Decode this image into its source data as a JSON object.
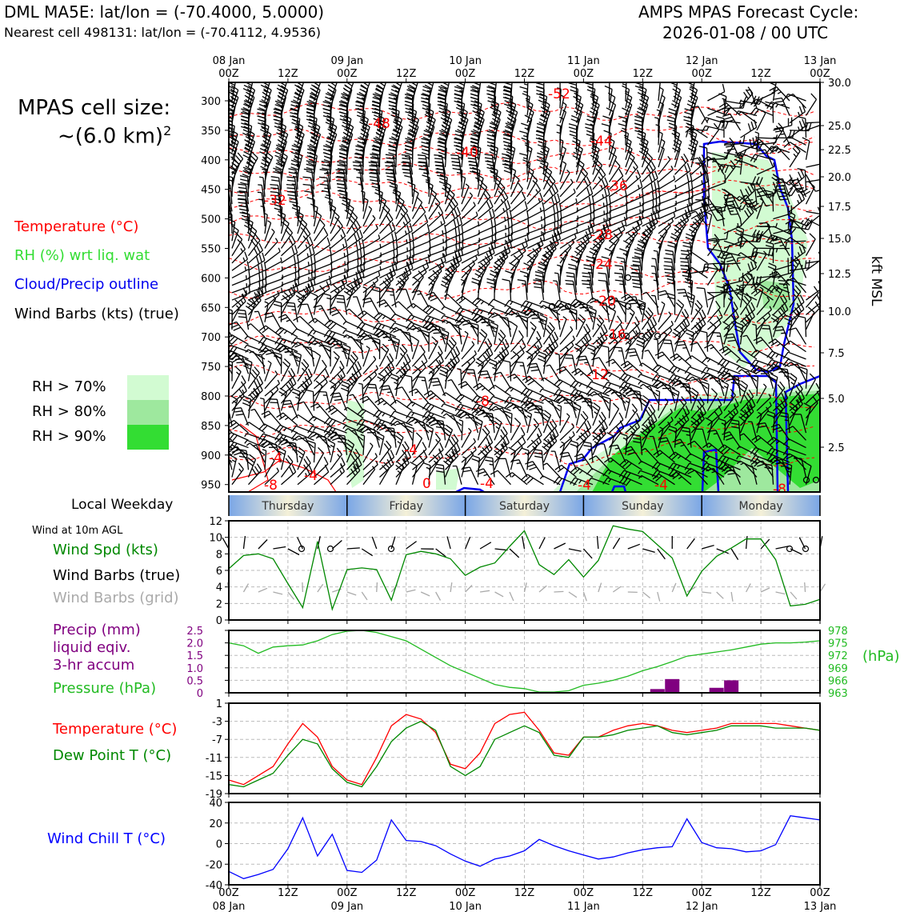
{
  "header": {
    "left_line1": "DML MA5E: lat/lon = (-70.4000, 5.0000)",
    "left_line2": "Nearest cell 498131: lat/lon = (-70.4112, 4.9536)",
    "right_line1": "AMPS MPAS Forecast Cycle:",
    "right_line2": "2026-01-08 / 00 UTC"
  },
  "colors": {
    "temperature": "#ff0000",
    "rh": "#33dd33",
    "cloud_outline": "#0000ee",
    "pressure": "#22bb22",
    "dewpoint": "#008800",
    "precip": "#800080",
    "windchill": "#0000ff",
    "wind_grid": "#aaaaaa"
  },
  "time_axis": {
    "top_ticks": [
      "08 Jan\n00Z",
      "12Z",
      "09 Jan\n00Z",
      "12Z",
      "10 Jan\n00Z",
      "12Z",
      "11 Jan\n00Z",
      "12Z",
      "12 Jan\n00Z",
      "12Z",
      "13 Jan\n00Z"
    ],
    "bottom_ticks": [
      "00Z\n08 Jan",
      "12Z",
      "00Z\n09 Jan",
      "12Z",
      "00Z\n10 Jan",
      "12Z",
      "00Z\n11 Jan",
      "12Z",
      "00Z\n12 Jan",
      "12Z",
      "00Z\n13 Jan"
    ]
  },
  "weekday_bar": {
    "label": "Local Weekday",
    "days": [
      "Thursday",
      "Friday",
      "Saturday",
      "Sunday",
      "Monday"
    ]
  },
  "cross_section": {
    "cell_size_line1": "MPAS cell size:",
    "cell_size_line2": "~(6.0 km)",
    "cell_size_exp": "2",
    "legend": {
      "temperature": "Temperature (°C)",
      "rh": "RH (%) wrt liq. wat",
      "cloud": "Cloud/Precip outline",
      "barbs": "Wind Barbs (kts) (true)"
    },
    "rh_levels": [
      {
        "label": "RH > 70%",
        "color": "#d2fbd2"
      },
      {
        "label": "RH > 80%",
        "color": "#9ee89e"
      },
      {
        "label": "RH > 90%",
        "color": "#33dd33"
      }
    ],
    "pressure_ticks": [
      "300",
      "350",
      "400",
      "450",
      "500",
      "550",
      "600",
      "650",
      "700",
      "750",
      "800",
      "850",
      "900",
      "950"
    ],
    "kft_ticks": [
      "30.0",
      "25.0",
      "22.5",
      "20.0",
      "17.5",
      "15.0",
      "12.5",
      "10.0",
      "7.5",
      "5.0",
      "2.5"
    ],
    "kft_label": "kft MSL",
    "temp_contour_labels": [
      "-52",
      "-48",
      "-40",
      "-44",
      "-36",
      "-32",
      "-28",
      "-24",
      "-20",
      "-16",
      "-12",
      "-8",
      "-4",
      "-4",
      "0",
      "-4",
      "-8",
      "-4",
      "-4",
      "-8",
      "-4"
    ]
  },
  "chart_data": [
    {
      "type": "line",
      "title": "Wind at 10m AGL",
      "legend": [
        "Wind Spd (kts)",
        "Wind Barbs (true)",
        "Wind Barbs (grid)"
      ],
      "x": [
        0,
        3,
        6,
        9,
        12,
        15,
        18,
        21,
        24,
        27,
        30,
        33,
        36,
        39,
        42,
        45,
        48,
        51,
        54,
        57,
        60,
        63,
        66,
        69,
        72,
        75,
        78,
        81,
        84,
        87,
        90,
        93,
        96,
        99,
        102,
        105,
        108,
        111,
        114,
        117,
        120
      ],
      "series": [
        {
          "name": "Wind Spd (kts)",
          "values": [
            6.2,
            7.8,
            8.0,
            7.4,
            4.4,
            1.5,
            9.5,
            1.3,
            6.1,
            6.3,
            6.1,
            2.4,
            7.9,
            8.3,
            8.0,
            7.4,
            5.4,
            6.4,
            6.9,
            8.9,
            10.8,
            6.7,
            5.5,
            7.3,
            5.2,
            7.2,
            11.4,
            11.0,
            10.7,
            9.1,
            7.5,
            2.9,
            5.9,
            7.7,
            8.7,
            9.8,
            9.8,
            7.3,
            1.7,
            1.9,
            2.5
          ]
        }
      ],
      "yticks": [
        "0",
        "2",
        "4",
        "6",
        "8",
        "10",
        "12"
      ],
      "ylim": [
        0,
        12
      ]
    },
    {
      "type": "bar",
      "legend": [
        "Precip (mm)",
        "liquid eqiv.",
        "3-hr accum",
        "Pressure (hPa)"
      ],
      "precip_ticks": [
        "0",
        "0.5",
        "1.0",
        "1.5",
        "2.0",
        "2.5"
      ],
      "pressure_ticks": [
        "963",
        "966",
        "969",
        "972",
        "975",
        "978"
      ],
      "pressure_unit": "(hPa)",
      "precip": {
        "x": [
          87,
          90,
          99,
          102
        ],
        "values": [
          0.15,
          0.55,
          0.2,
          0.5
        ]
      },
      "pressure": {
        "x": [
          0,
          3,
          6,
          9,
          12,
          15,
          18,
          21,
          24,
          27,
          30,
          33,
          36,
          39,
          42,
          45,
          48,
          51,
          54,
          57,
          60,
          63,
          66,
          69,
          72,
          75,
          78,
          81,
          84,
          87,
          90,
          93,
          96,
          99,
          102,
          105,
          108,
          111,
          114,
          117,
          120
        ],
        "values": [
          975.0,
          974.3,
          972.5,
          974.0,
          974.3,
          974.5,
          975.5,
          977.0,
          977.8,
          978.0,
          977.5,
          976.5,
          975.5,
          973.5,
          971.5,
          969.5,
          968.0,
          966.5,
          965.0,
          964.3,
          964.0,
          963.2,
          963.2,
          963.5,
          964.8,
          965.3,
          966.0,
          967.0,
          968.3,
          969.3,
          970.5,
          971.8,
          972.3,
          972.8,
          973.3,
          974.0,
          974.7,
          975.0,
          975.0,
          975.2,
          975.5
        ]
      },
      "ylim_precip": [
        0,
        2.5
      ],
      "ylim_pressure": [
        963,
        978
      ]
    },
    {
      "type": "line",
      "legend": [
        "Temperature (°C)",
        "Dew Point T (°C)"
      ],
      "yticks": [
        "1",
        "-3",
        "-7",
        "-11",
        "-15",
        "-19"
      ],
      "ylim": [
        -19,
        1
      ],
      "x": [
        0,
        3,
        6,
        9,
        12,
        15,
        18,
        21,
        24,
        27,
        30,
        33,
        36,
        39,
        42,
        45,
        48,
        51,
        54,
        57,
        60,
        63,
        66,
        69,
        72,
        75,
        78,
        81,
        84,
        87,
        90,
        93,
        96,
        99,
        102,
        105,
        108,
        111,
        114,
        117,
        120
      ],
      "series": [
        {
          "name": "Temperature (°C)",
          "values": [
            -16.0,
            -17.0,
            -15.0,
            -13.0,
            -8.0,
            -3.5,
            -6.5,
            -13.0,
            -16.0,
            -17.0,
            -11.0,
            -4.0,
            -1.5,
            -2.5,
            -5.5,
            -12.5,
            -13.5,
            -10.0,
            -3.5,
            -1.5,
            -1.0,
            -5.0,
            -10.0,
            -10.5,
            -6.5,
            -6.5,
            -5.0,
            -4.0,
            -3.5,
            -4.0,
            -5.0,
            -5.5,
            -5.0,
            -4.5,
            -3.5,
            -3.5,
            -3.5,
            -3.5,
            -4.0,
            -4.5,
            -5.0
          ]
        },
        {
          "name": "Dew Point T (°C)",
          "values": [
            -17.0,
            -17.5,
            -16.0,
            -14.5,
            -10.5,
            -7.0,
            -8.0,
            -13.5,
            -16.5,
            -17.5,
            -13.0,
            -7.5,
            -4.5,
            -3.0,
            -5.0,
            -13.0,
            -15.0,
            -13.0,
            -7.0,
            -5.5,
            -4.0,
            -5.5,
            -10.5,
            -11.0,
            -6.5,
            -6.5,
            -6.0,
            -5.0,
            -4.5,
            -4.0,
            -5.5,
            -6.0,
            -5.5,
            -5.0,
            -4.0,
            -4.0,
            -4.0,
            -4.5,
            -4.5,
            -4.5,
            -5.0
          ]
        }
      ]
    },
    {
      "type": "line",
      "legend": [
        "Wind Chill T (°C)"
      ],
      "yticks": [
        "40",
        "20",
        "0",
        "-20",
        "-40"
      ],
      "ylim": [
        -40,
        40
      ],
      "x": [
        0,
        3,
        6,
        9,
        12,
        15,
        18,
        21,
        24,
        27,
        30,
        33,
        36,
        39,
        42,
        45,
        48,
        51,
        54,
        57,
        60,
        63,
        66,
        69,
        72,
        75,
        78,
        81,
        84,
        87,
        90,
        93,
        96,
        99,
        102,
        105,
        108,
        111,
        114,
        117,
        120
      ],
      "series": [
        {
          "name": "Wind Chill T (°C)",
          "values": [
            -27,
            -34,
            -30,
            -25,
            -5,
            25,
            -12,
            9,
            -26,
            -28,
            -16,
            23,
            3,
            2,
            -2,
            -10,
            -17,
            -22,
            -15,
            -12,
            -7,
            4,
            -2,
            -7,
            -11,
            -15,
            -13,
            -9,
            -6,
            -4,
            -3,
            24,
            1,
            -4,
            -5,
            -8,
            -7,
            -1,
            27,
            25,
            23
          ]
        }
      ]
    }
  ]
}
